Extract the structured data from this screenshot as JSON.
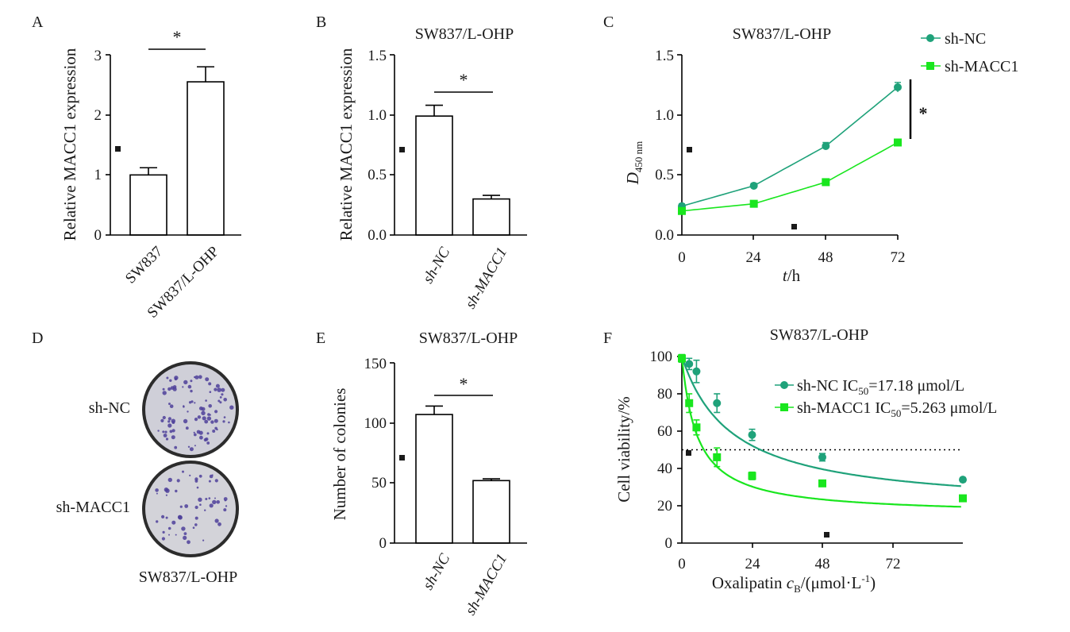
{
  "panels": [
    {
      "letter": "A",
      "title": ""
    },
    {
      "letter": "B",
      "title": "SW837/L-OHP"
    },
    {
      "letter": "C",
      "title": "SW837/L-OHP"
    },
    {
      "letter": "D",
      "title": ""
    },
    {
      "letter": "E",
      "title": "SW837/L-OHP"
    },
    {
      "letter": "F",
      "title": "SW837/L-OHP"
    }
  ],
  "panel_d": {
    "row_labels": [
      "sh-NC",
      "sh-MACC1"
    ],
    "caption": "SW837/L-OHP"
  },
  "colors": {
    "sh_nc": "#1fa27a",
    "sh_macc1": "#19e61e",
    "bar_fill": "#ffffff",
    "axis": "#000000",
    "plate_fill": "#cfcfd8",
    "colony": "#4d3f9a"
  },
  "chart_data": [
    {
      "panel": "A",
      "type": "bar",
      "title": "",
      "categories": [
        "SW837",
        "SW837/L-OHP"
      ],
      "values": [
        1.0,
        2.55
      ],
      "errors": [
        0.12,
        0.25
      ],
      "ylabel": "Relative MACC1 expression",
      "ylim": [
        0,
        3
      ],
      "yticks": [
        "0",
        "1",
        "2",
        "3"
      ],
      "significance": "*"
    },
    {
      "panel": "B",
      "type": "bar",
      "title": "SW837/L-OHP",
      "categories": [
        "sh-NC",
        "sh-MACC1"
      ],
      "values": [
        0.99,
        0.3
      ],
      "errors": [
        0.09,
        0.03
      ],
      "ylabel": "Relative MACC1 expression",
      "ylim": [
        0,
        1.5
      ],
      "yticks": [
        "0.0",
        "0.5",
        "1.0",
        "1.5"
      ],
      "significance": "*"
    },
    {
      "panel": "C",
      "type": "line",
      "title": "SW837/L-OHP",
      "x": [
        0,
        24,
        48,
        72
      ],
      "series": [
        {
          "name": "sh-NC",
          "values": [
            0.24,
            0.41,
            0.74,
            1.23
          ],
          "errors": [
            0.02,
            0.02,
            0.03,
            0.04
          ]
        },
        {
          "name": "sh-MACC1",
          "values": [
            0.2,
            0.26,
            0.44,
            0.77
          ],
          "errors": [
            0.01,
            0.01,
            0.01,
            0.01
          ]
        }
      ],
      "xlabel_italic": "t",
      "xlabel_rest": "/h",
      "ylabel_main": "D",
      "ylabel_sub": "450 nm",
      "xlim": [
        0,
        72
      ],
      "ylim": [
        0,
        1.5
      ],
      "xticks": [
        "0",
        "24",
        "48",
        "72"
      ],
      "yticks": [
        "0.0",
        "0.5",
        "1.0",
        "1.5"
      ],
      "significance": "*",
      "legend_position": "top-right"
    },
    {
      "panel": "E",
      "type": "bar",
      "title": "SW837/L-OHP",
      "categories": [
        "sh-NC",
        "sh-MACC1"
      ],
      "values": [
        107,
        52
      ],
      "errors": [
        7,
        1.5
      ],
      "ylabel": "Number of colonies",
      "ylim": [
        0,
        150
      ],
      "yticks": [
        "0",
        "50",
        "100",
        "150"
      ],
      "significance": "*"
    },
    {
      "panel": "F",
      "type": "scatter",
      "title": "SW837/L-OHP",
      "series": [
        {
          "name": "sh-NC",
          "label_prefix": "sh-NC IC",
          "label_sub": "50",
          "label_value": "=17.18 μmol/L",
          "x": [
            0,
            2.5,
            5,
            12,
            24,
            48,
            96
          ],
          "y": [
            99,
            96,
            92,
            75,
            58,
            46,
            34
          ],
          "errors": [
            2,
            3,
            6,
            5,
            3,
            2,
            1
          ]
        },
        {
          "name": "sh-MACC1",
          "label_prefix": "sh-MACC1 IC",
          "label_sub": "50",
          "label_value": "=5.263 μmol/L",
          "x": [
            0,
            2.5,
            5,
            12,
            24,
            48,
            96
          ],
          "y": [
            99,
            75,
            62,
            46,
            36,
            32,
            24
          ],
          "errors": [
            2,
            5,
            4,
            5,
            2,
            1,
            1
          ]
        }
      ],
      "reference_line_y": 50,
      "xlabel_main": "Oxalipatin ",
      "xlabel_c": "c",
      "xlabel_sub": "B",
      "xlabel_unit": "/(μmol·L",
      "xlabel_sup": "-1",
      "xlabel_close": ")",
      "ylabel": "Cell viability/%",
      "xlim": [
        0,
        96
      ],
      "ylim": [
        0,
        100
      ],
      "xticks": [
        "0",
        "24",
        "48",
        "72"
      ],
      "yticks": [
        "0",
        "20",
        "40",
        "60",
        "80",
        "100"
      ],
      "legend_position": "top-right"
    }
  ]
}
